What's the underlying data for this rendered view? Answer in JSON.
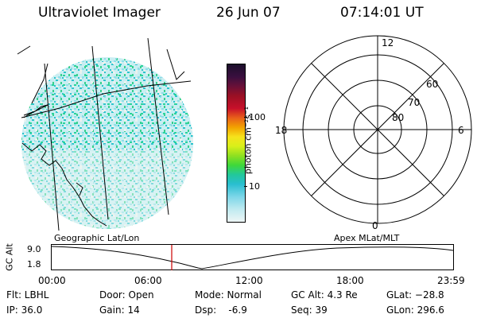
{
  "header": {
    "title": "Ultraviolet Imager",
    "date": "26 Jun 07",
    "time": "07:14:01 UT"
  },
  "left_panel": {
    "label": "Geographic Lat/Lon"
  },
  "colorbar": {
    "unit_label": "photon cm⁻²s⁻¹",
    "tick_labels": [
      "100",
      "10"
    ],
    "colors": [
      "#1b0f2b",
      "#3a0f3f",
      "#6a1038",
      "#9a1024",
      "#c8102a",
      "#e8601a",
      "#f2a200",
      "#f6e21c",
      "#d8f01a",
      "#8fe020",
      "#3fd83a",
      "#22c89a",
      "#28bed0",
      "#7cd6e8",
      "#bfeaf0",
      "#eef6f6"
    ]
  },
  "polar_panel": {
    "label": "Apex MLat/MLT",
    "mlt_labels": [
      "12",
      "18",
      "6",
      "0"
    ],
    "mlat_labels": [
      "60",
      "70",
      "80"
    ]
  },
  "altitude_plot": {
    "axis_title": "GC Alt",
    "y_ticks": [
      "9.0",
      "1.8"
    ],
    "x_ticks": [
      "00:00",
      "06:00",
      "12:00",
      "18:00",
      "23:59"
    ],
    "marker_time": "07:14",
    "marker_color": "#cc0000"
  },
  "status": {
    "flt": "Flt: LBHL",
    "door": "Door: Open",
    "mode": "Mode: Normal",
    "gc_alt": "GC Alt: 4.3 Re",
    "glat": "GLat: −28.8",
    "ip": "IP: 36.0",
    "gain": "Gain: 14",
    "dsp": "Dsp:    -6.9",
    "seq": "Seq: 39",
    "glon": "GLon: 296.6"
  }
}
